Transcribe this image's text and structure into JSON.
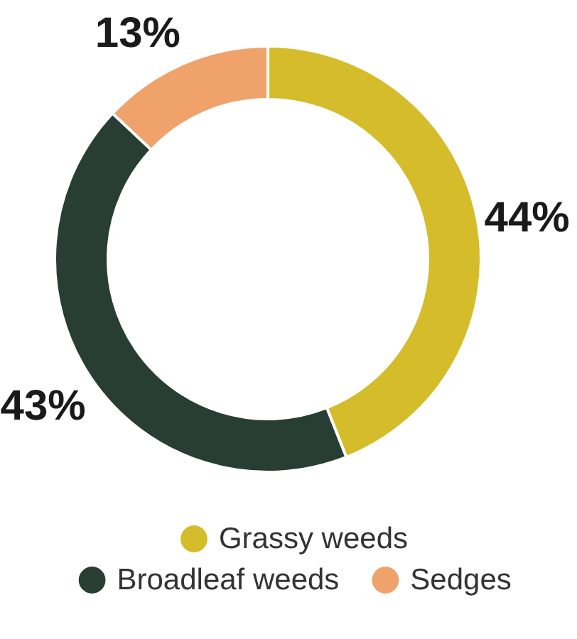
{
  "chart_data": {
    "type": "donut",
    "categories": [
      "Grassy weeds",
      "Broadleaf weeds",
      "Sedges"
    ],
    "values": [
      44,
      43,
      13
    ],
    "colors": [
      "#d4bc2a",
      "#283d33",
      "#f0a26b"
    ],
    "value_labels": [
      "44%",
      "43%",
      "13%"
    ],
    "legend": "bottom"
  }
}
